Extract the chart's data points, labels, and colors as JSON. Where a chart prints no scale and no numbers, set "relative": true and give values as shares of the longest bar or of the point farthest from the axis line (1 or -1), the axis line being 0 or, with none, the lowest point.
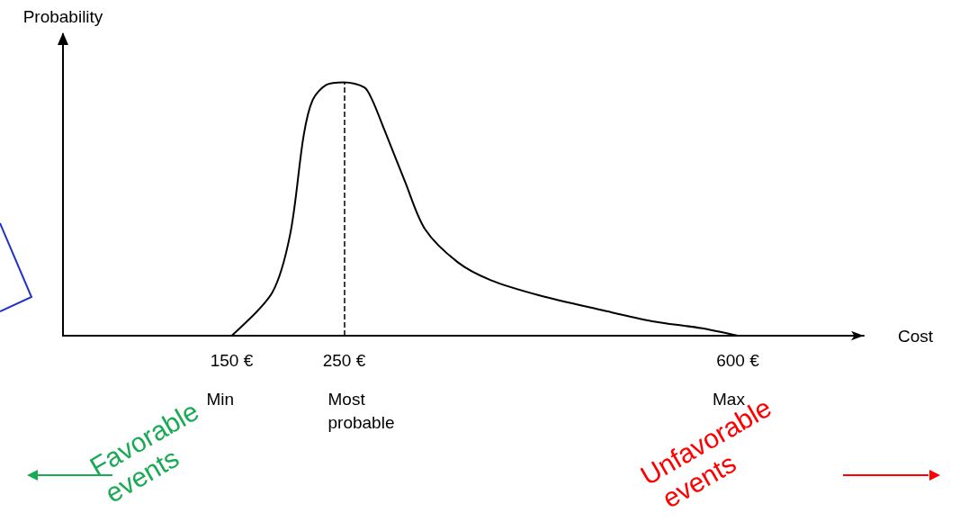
{
  "chart_data": {
    "type": "line",
    "xlabel": "Cost",
    "ylabel": "Probability",
    "relative": true,
    "xlim": [
      0,
      712
    ],
    "xticks": [
      {
        "value": 150,
        "label": "150 €"
      },
      {
        "value": 250,
        "label": "250 €"
      },
      {
        "value": 600,
        "label": "600 €"
      }
    ],
    "series": [
      {
        "color": "#000000",
        "x": [
          150,
          186,
          202,
          214,
          222,
          234,
          250,
          268,
          275,
          286,
          304,
          322,
          351,
          380,
          423,
          480,
          524,
          567,
          600
        ],
        "values": [
          0,
          0.17,
          0.4,
          0.79,
          0.93,
          0.99,
          1,
          0.98,
          0.93,
          0.81,
          0.61,
          0.42,
          0.29,
          0.22,
          0.16,
          0.1,
          0.057,
          0.03,
          0
        ]
      }
    ],
    "ref_lines": [
      {
        "axis": "x",
        "value": 250,
        "color": "#000000",
        "line_style": "dashed"
      }
    ],
    "annotations": [
      "Min",
      "Most probable",
      "Max",
      "Favorable events",
      "Unfavorable events"
    ],
    "grid": false,
    "marker": "none",
    "line_style": "solid"
  }
}
